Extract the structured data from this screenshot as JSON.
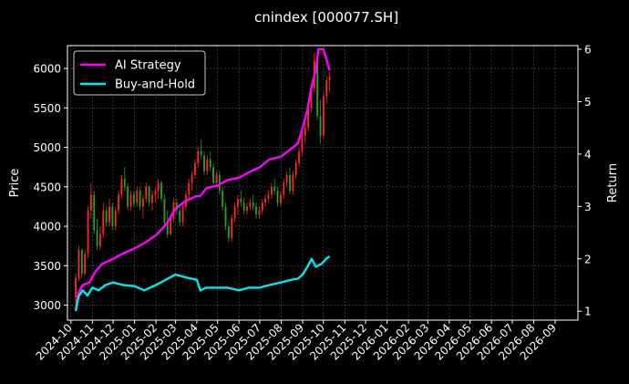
{
  "chart_data": {
    "type": "line",
    "title": "cnindex [000077.SH]",
    "xlabel": "",
    "ylabel": "Price",
    "y2label": "Return",
    "x_ticks": [
      "2024-10",
      "2024-11",
      "2024-12",
      "2025-01",
      "2025-02",
      "2025-03",
      "2025-04",
      "2025-05",
      "2025-06",
      "2025-07",
      "2025-08",
      "2025-09",
      "2025-10",
      "2025-11",
      "2025-12",
      "2026-01",
      "2026-02",
      "2026-03",
      "2026-04",
      "2026-05",
      "2026-06",
      "2026-07",
      "2026-08",
      "2026-09"
    ],
    "xlim": [
      "2024-09-26",
      "2026-10-04"
    ],
    "ylim": [
      2810,
      6290
    ],
    "y_ticks": [
      3000,
      3500,
      4000,
      4500,
      5000,
      5500,
      6000
    ],
    "y2lim": [
      0.83,
      6.07
    ],
    "y2_ticks": [
      1,
      2,
      3,
      4,
      5,
      6
    ],
    "grid": true,
    "legend": "top-left",
    "background": "#000000",
    "colors": {
      "up": "#ff2a1a",
      "down": "#22a322",
      "ai": "#ff00ff",
      "bh": "#00e8f0",
      "axis": "#ffffff",
      "grid": "#555555"
    },
    "candles_date_range": [
      "2024-10-08",
      "2025-10-10"
    ],
    "candles": [
      [
        3100,
        3400,
        3000,
        3350
      ],
      [
        3350,
        3750,
        3300,
        3700
      ],
      [
        3700,
        3720,
        3350,
        3400
      ],
      [
        3400,
        3700,
        3380,
        3650
      ],
      [
        3650,
        4250,
        3600,
        4200
      ],
      [
        4200,
        4550,
        4100,
        4400
      ],
      [
        4400,
        4450,
        3900,
        3950
      ],
      [
        3950,
        4100,
        3700,
        3750
      ],
      [
        3750,
        4000,
        3700,
        3900
      ],
      [
        3900,
        4300,
        3850,
        4200
      ],
      [
        4200,
        4250,
        4000,
        4050
      ],
      [
        4050,
        4350,
        4000,
        4250
      ],
      [
        4250,
        4300,
        3950,
        4000
      ],
      [
        4000,
        4250,
        3950,
        4200
      ],
      [
        4200,
        4450,
        4150,
        4400
      ],
      [
        4400,
        4650,
        4350,
        4600
      ],
      [
        4600,
        4750,
        4450,
        4500
      ],
      [
        4500,
        4550,
        4200,
        4250
      ],
      [
        4250,
        4450,
        4200,
        4400
      ],
      [
        4400,
        4450,
        4250,
        4300
      ],
      [
        4300,
        4500,
        4250,
        4450
      ],
      [
        4450,
        4500,
        4200,
        4250
      ],
      [
        4250,
        4400,
        4100,
        4350
      ],
      [
        4350,
        4550,
        4300,
        4500
      ],
      [
        4500,
        4520,
        4250,
        4300
      ],
      [
        4300,
        4450,
        4200,
        4400
      ],
      [
        4400,
        4500,
        4300,
        4450
      ],
      [
        4450,
        4600,
        4350,
        4550
      ],
      [
        4550,
        4580,
        4300,
        4350
      ],
      [
        4350,
        4400,
        4000,
        4050
      ],
      [
        4050,
        4200,
        3850,
        3900
      ],
      [
        3900,
        4150,
        3880,
        4100
      ],
      [
        4100,
        4350,
        4050,
        4300
      ],
      [
        4300,
        4350,
        4150,
        4200
      ],
      [
        4200,
        4250,
        4000,
        4050
      ],
      [
        4050,
        4300,
        4000,
        4250
      ],
      [
        4250,
        4450,
        4200,
        4400
      ],
      [
        4400,
        4600,
        4350,
        4550
      ],
      [
        4550,
        4700,
        4450,
        4650
      ],
      [
        4650,
        4850,
        4600,
        4800
      ],
      [
        4800,
        5000,
        4750,
        4950
      ],
      [
        4950,
        5100,
        4850,
        4900
      ],
      [
        4900,
        4950,
        4650,
        4700
      ],
      [
        4700,
        4900,
        4650,
        4850
      ],
      [
        4850,
        4950,
        4700,
        4750
      ],
      [
        4750,
        4800,
        4500,
        4550
      ],
      [
        4550,
        4700,
        4500,
        4650
      ],
      [
        4650,
        4700,
        4400,
        4450
      ],
      [
        4450,
        4500,
        4200,
        4250
      ],
      [
        4250,
        4300,
        3950,
        4000
      ],
      [
        4000,
        4050,
        3800,
        3850
      ],
      [
        3850,
        4150,
        3800,
        4100
      ],
      [
        4100,
        4300,
        4050,
        4250
      ],
      [
        4250,
        4400,
        4150,
        4350
      ],
      [
        4350,
        4450,
        4250,
        4300
      ],
      [
        4300,
        4350,
        4150,
        4200
      ],
      [
        4200,
        4300,
        4150,
        4250
      ],
      [
        4250,
        4350,
        4200,
        4300
      ],
      [
        4300,
        4400,
        4200,
        4250
      ],
      [
        4250,
        4300,
        4100,
        4150
      ],
      [
        4150,
        4250,
        4100,
        4200
      ],
      [
        4200,
        4350,
        4150,
        4300
      ],
      [
        4300,
        4400,
        4250,
        4350
      ],
      [
        4350,
        4450,
        4300,
        4400
      ],
      [
        4400,
        4550,
        4350,
        4500
      ],
      [
        4500,
        4600,
        4400,
        4450
      ],
      [
        4450,
        4500,
        4250,
        4300
      ],
      [
        4300,
        4450,
        4250,
        4400
      ],
      [
        4400,
        4600,
        4350,
        4550
      ],
      [
        4550,
        4700,
        4500,
        4650
      ],
      [
        4650,
        4750,
        4400,
        4450
      ],
      [
        4450,
        4700,
        4400,
        4650
      ],
      [
        4650,
        4850,
        4600,
        4800
      ],
      [
        4800,
        5000,
        4750,
        4950
      ],
      [
        4950,
        5200,
        4900,
        5150
      ],
      [
        5150,
        5300,
        5050,
        5250
      ],
      [
        5250,
        5550,
        5200,
        5500
      ],
      [
        5500,
        5800,
        5450,
        5750
      ],
      [
        5750,
        6200,
        5700,
        6100
      ],
      [
        6100,
        6150,
        5350,
        5400
      ],
      [
        5400,
        5600,
        5050,
        5150
      ],
      [
        5150,
        5700,
        5100,
        5650
      ],
      [
        5650,
        5900,
        5550,
        5850
      ],
      [
        5850,
        5950,
        5700,
        5900
      ]
    ],
    "series": [
      {
        "name": "AI Strategy",
        "color": "#ff00ff",
        "axis": "right",
        "x": [
          "2024-10-08",
          "2024-10-12",
          "2024-10-18",
          "2024-10-28",
          "2024-11-05",
          "2024-11-15",
          "2024-12-01",
          "2024-12-15",
          "2025-01-01",
          "2025-01-15",
          "2025-02-01",
          "2025-02-15",
          "2025-03-01",
          "2025-03-15",
          "2025-04-01",
          "2025-04-06",
          "2025-04-15",
          "2025-05-01",
          "2025-05-15",
          "2025-06-01",
          "2025-06-15",
          "2025-07-01",
          "2025-07-15",
          "2025-08-01",
          "2025-08-15",
          "2025-08-25",
          "2025-09-01",
          "2025-09-08",
          "2025-09-14",
          "2025-09-20",
          "2025-09-24",
          "2025-10-01",
          "2025-10-10"
        ],
        "values": [
          1.02,
          1.35,
          1.5,
          1.55,
          1.75,
          1.9,
          2.0,
          2.1,
          2.2,
          2.3,
          2.45,
          2.65,
          2.95,
          3.1,
          3.2,
          3.2,
          3.35,
          3.4,
          3.5,
          3.55,
          3.65,
          3.75,
          3.9,
          3.95,
          4.1,
          4.2,
          4.5,
          4.85,
          5.3,
          5.6,
          6.0,
          6.0,
          5.6
        ]
      },
      {
        "name": "Buy-and-Hold",
        "color": "#00e8f0",
        "axis": "right",
        "x": [
          "2024-10-08",
          "2024-10-12",
          "2024-10-18",
          "2024-10-25",
          "2024-11-01",
          "2024-11-10",
          "2024-11-20",
          "2024-12-01",
          "2024-12-15",
          "2025-01-01",
          "2025-01-15",
          "2025-02-01",
          "2025-02-15",
          "2025-03-01",
          "2025-03-15",
          "2025-04-01",
          "2025-04-06",
          "2025-04-15",
          "2025-05-01",
          "2025-05-15",
          "2025-06-01",
          "2025-06-15",
          "2025-07-01",
          "2025-07-15",
          "2025-08-01",
          "2025-08-15",
          "2025-08-25",
          "2025-09-01",
          "2025-09-08",
          "2025-09-14",
          "2025-09-20",
          "2025-09-28",
          "2025-10-05",
          "2025-10-10"
        ],
        "values": [
          1.0,
          1.28,
          1.4,
          1.3,
          1.45,
          1.4,
          1.5,
          1.55,
          1.5,
          1.48,
          1.4,
          1.5,
          1.6,
          1.7,
          1.65,
          1.6,
          1.4,
          1.45,
          1.45,
          1.45,
          1.4,
          1.45,
          1.45,
          1.5,
          1.55,
          1.6,
          1.62,
          1.7,
          1.85,
          2.0,
          1.85,
          1.9,
          2.0,
          2.05
        ]
      }
    ]
  }
}
